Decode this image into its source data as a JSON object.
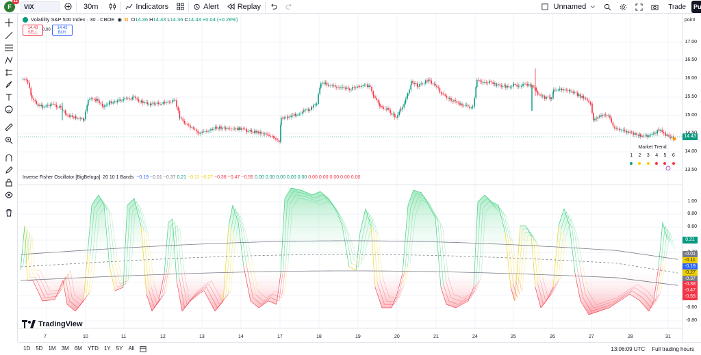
{
  "topbar": {
    "avatar_letter": "F",
    "avatar_badge": "11",
    "symbol": "VIX",
    "interval": "30m",
    "indicators_label": "Indicators",
    "alert_label": "Alert",
    "replay_label": "Replay",
    "layout_name": "Unnamed",
    "trade_label": "Trade",
    "publish_label": "Pu"
  },
  "legend": {
    "title": "Volatility S&P 500 Index · 30 · CBOE",
    "o_label": "O",
    "o": "14.36",
    "h_label": "H",
    "h": "14.43",
    "l_label": "L",
    "l": "14.36",
    "c_label": "C",
    "c": "14.43",
    "change": "+0.04 (+0.28%)",
    "d_label": "D"
  },
  "trade": {
    "sell_price": "14.43",
    "sell_label": "SELL",
    "spread": "0.00",
    "buy_price": "14.43",
    "buy_label": "BUY"
  },
  "indicator": {
    "name": "Inverse Fisher Oscillator [BigBeluga]",
    "params": "20 10 1 Bands",
    "values": [
      {
        "v": "−0.19",
        "c": "#2962ff"
      },
      {
        "v": "−0.01",
        "c": "#787b86"
      },
      {
        "v": "−0.37",
        "c": "#787b86"
      },
      {
        "v": "0.21",
        "c": "#089981"
      },
      {
        "v": "−0.11",
        "c": "#f0d000"
      },
      {
        "v": "−0.27",
        "c": "#f0d000"
      },
      {
        "v": "−0.38",
        "c": "#f23645"
      },
      {
        "v": "−0.47",
        "c": "#f23645"
      },
      {
        "v": "−0.55",
        "c": "#f23645"
      },
      {
        "v": "0.00",
        "c": "#089981"
      },
      {
        "v": "0.00",
        "c": "#089981"
      },
      {
        "v": "0.00",
        "c": "#089981"
      },
      {
        "v": "0.00",
        "c": "#089981"
      },
      {
        "v": "0.00",
        "c": "#089981"
      },
      {
        "v": "0.00",
        "c": "#f23645"
      },
      {
        "v": "0.00",
        "c": "#f23645"
      },
      {
        "v": "0.00",
        "c": "#f23645"
      },
      {
        "v": "0.00",
        "c": "#f23645"
      },
      {
        "v": "0.00",
        "c": "#f23645"
      }
    ]
  },
  "price_axis": {
    "unit_label": "point",
    "labels": [
      "17.00",
      "16.50",
      "16.00",
      "15.50",
      "15.00",
      "14.50",
      "14.00",
      "13.50"
    ],
    "current": "14.43",
    "current_color": "#089981"
  },
  "osc_axis": {
    "labels": [
      "1.00",
      "0.80",
      "0.60",
      "0.40",
      "0.20",
      "-0.20",
      "-0.40",
      "-0.60",
      "-0.80"
    ],
    "tags": [
      {
        "v": "0.21",
        "c": "#089981"
      },
      {
        "v": "-0.01",
        "c": "#787b86"
      },
      {
        "v": "-0.11",
        "c": "#f0d000"
      },
      {
        "v": "-0.19",
        "c": "#2962ff"
      },
      {
        "v": "-0.27",
        "c": "#f0d000"
      },
      {
        "v": "-0.37",
        "c": "#787b86"
      },
      {
        "v": "-0.38",
        "c": "#f23645"
      },
      {
        "v": "-0.47",
        "c": "#f23645"
      },
      {
        "v": "-0.55",
        "c": "#f23645"
      }
    ]
  },
  "market_trend": {
    "title": "Market Trend",
    "numbers": [
      "1",
      "2",
      "3",
      "4",
      "5",
      "6"
    ],
    "colors": [
      "#089981",
      "#f0d000",
      "#f0d000",
      "#f23645",
      "#f23645",
      "#f23645"
    ]
  },
  "time_axis": [
    "7",
    "10",
    "11",
    "12",
    "13",
    "14",
    "17",
    "18",
    "19",
    "20",
    "21",
    "24",
    "25",
    "26",
    "27",
    "28",
    "31"
  ],
  "bottombar": {
    "ranges": [
      "1D",
      "5D",
      "1M",
      "3M",
      "6M",
      "YTD",
      "1Y",
      "5Y",
      "All"
    ],
    "clock": "13:06:09 UTC",
    "session": "Full trading hours"
  },
  "logo_text": "TradingView"
}
